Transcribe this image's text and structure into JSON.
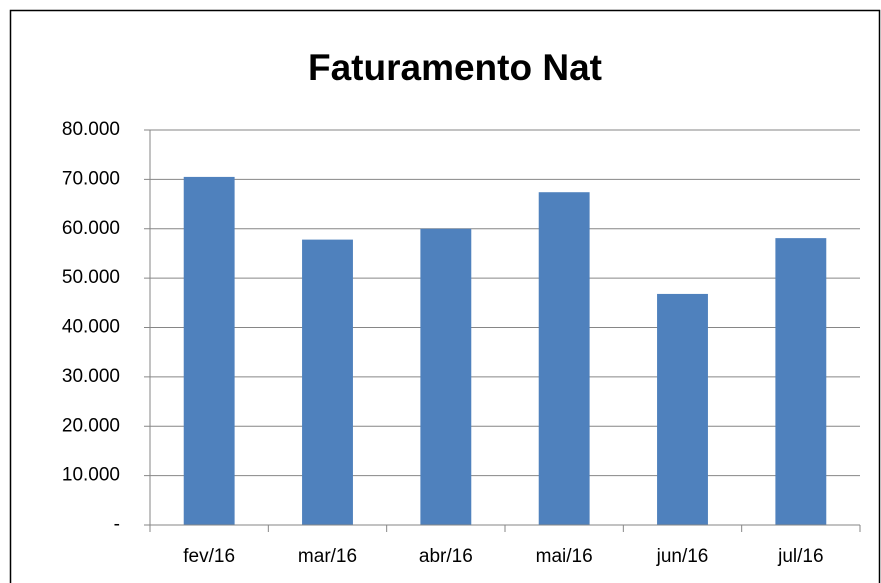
{
  "chart_data": {
    "type": "bar",
    "title": "Faturamento Nat",
    "categories": [
      "fev/16",
      "mar/16",
      "abr/16",
      "mai/16",
      "jun/16",
      "jul/16"
    ],
    "values": [
      70500,
      57800,
      60000,
      67400,
      46800,
      58100
    ],
    "color": "#4f81bd",
    "ylim": [
      0,
      80000
    ],
    "yticks": [
      {
        "value": 0,
        "label": "-"
      },
      {
        "value": 10000,
        "label": "10.000"
      },
      {
        "value": 20000,
        "label": "20.000"
      },
      {
        "value": 30000,
        "label": "30.000"
      },
      {
        "value": 40000,
        "label": "40.000"
      },
      {
        "value": 50000,
        "label": "50.000"
      },
      {
        "value": 60000,
        "label": "60.000"
      },
      {
        "value": 70000,
        "label": "70.000"
      },
      {
        "value": 80000,
        "label": "80.000"
      }
    ],
    "grid": true
  }
}
